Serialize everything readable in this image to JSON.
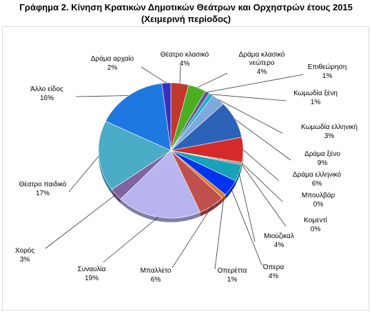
{
  "chart_data": {
    "type": "pie",
    "title": "Γράφημα 2. Κίνηση Κρατικών Δημοτικών Θεάτρων και Ορχηστρών έτους 2015",
    "subtitle": "(Χειμερινή περίοδος)",
    "slices": [
      {
        "name": "Θέατρο κλασικό",
        "value": 4,
        "label": "4%",
        "color": "#c0392b"
      },
      {
        "name": "Δράμα κλασικό νεώτερο",
        "value": 4,
        "label": "4%",
        "color": "#4caf22"
      },
      {
        "name": "Επιθεώρηση",
        "value": 1,
        "label": "1%",
        "color": "#6b4fa0"
      },
      {
        "name": "Κωμωδία ξένη",
        "value": 1,
        "label": "1%",
        "color": "#1fb0c8"
      },
      {
        "name": "Κωμωδία ελληνική",
        "value": 3,
        "label": "3%",
        "color": "#7fa8dc"
      },
      {
        "name": "Δράμα ξένο",
        "value": 9,
        "label": "9%",
        "color": "#2c63b8"
      },
      {
        "name": "Δράμα ελληνικό",
        "value": 6,
        "label": "6%",
        "color": "#d42a2a"
      },
      {
        "name": "Μπουλβάρ",
        "value": 0.3,
        "label": "0%",
        "color": "#5e8c2e"
      },
      {
        "name": "Κομεντί",
        "value": 0.3,
        "label": "0%",
        "color": "#7a3e9d"
      },
      {
        "name": "Μιούζικαλ",
        "value": 4,
        "label": "4%",
        "color": "#17a2b8"
      },
      {
        "name": "Όπερα",
        "value": 4,
        "label": "4%",
        "color": "#0033ee"
      },
      {
        "name": "Οπερέττα",
        "value": 1,
        "label": "1%",
        "color": "#e07b20"
      },
      {
        "name": "Μπαλλέτο",
        "value": 6,
        "label": "6%",
        "color": "#c0504d"
      },
      {
        "name": "Συναυλία",
        "value": 19,
        "label": "19%",
        "color": "#b8b4f0"
      },
      {
        "name": "Χορός",
        "value": 3,
        "label": "3%",
        "color": "#8064a2"
      },
      {
        "name": "Θέατρο παιδικό",
        "value": 17,
        "label": "17%",
        "color": "#4aacc6"
      },
      {
        "name": "Άλλο είδος",
        "value": 16,
        "label": "16%",
        "color": "#1f77e0"
      },
      {
        "name": "Δράμα αρχαίο",
        "value": 2,
        "label": "2%",
        "color": "#3a2fc0"
      }
    ]
  },
  "label_lines": {
    "Δράμα κλασικό νεώτερο": [
      "Δράμα κλασικό",
      "νεώτερο"
    ]
  }
}
